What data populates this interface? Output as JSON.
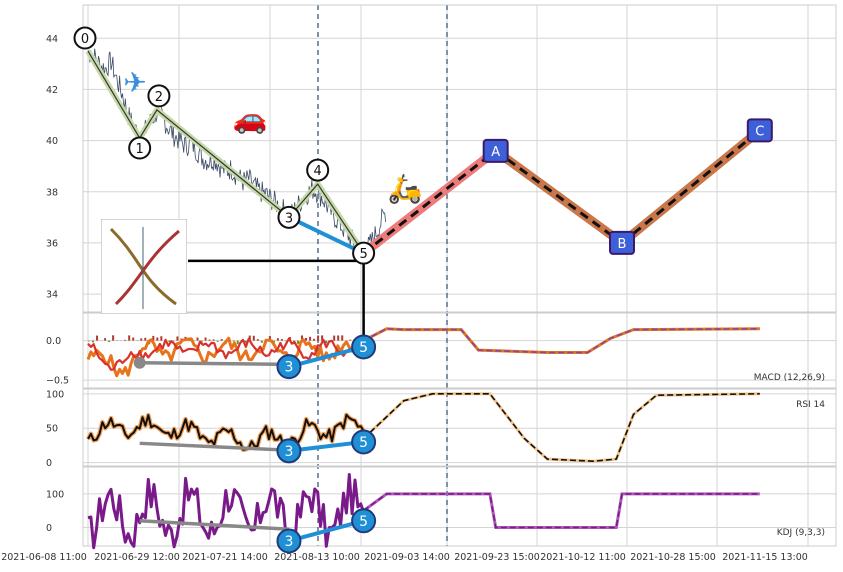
{
  "chart_data": {
    "type": "line",
    "x_tick_labels": [
      "2021-06-08 11:00",
      "2021-06-29 12:00",
      "2021-07-21 14:00",
      "2021-08-13 10:00",
      "2021-09-03 14:00",
      "2021-09-23 15:00",
      "2021-10-12 11:00",
      "2021-10-28 15:00",
      "2021-11-15 13:00"
    ],
    "panels": [
      {
        "name": "price",
        "ylim": [
          33.3,
          45.3
        ],
        "y_ticks": [
          34,
          36,
          38,
          40,
          42,
          44
        ],
        "series": [
          {
            "values": [
              43.5,
              43.3,
              43.0,
              42.8,
              43.1,
              42.4,
              41.8,
              41.0,
              40.5,
              40.2,
              40.4,
              40.8,
              41.1,
              40.9,
              40.5,
              40.2,
              40.0,
              39.8,
              39.9,
              39.6,
              39.3,
              39.2,
              39.3,
              39.0,
              38.8,
              38.9,
              38.6,
              38.4,
              38.5,
              38.2,
              38.0,
              37.9,
              37.7,
              37.5,
              37.3,
              37.0,
              37.3,
              37.6,
              37.9,
              38.1,
              38.0,
              37.7,
              37.3,
              37.0,
              36.7,
              36.4,
              36.1,
              35.8,
              35.6,
              35.9,
              36.3,
              36.8,
              37.3
            ]
          }
        ],
        "wave_labels": [
          "0",
          "1",
          "2",
          "3",
          "4",
          "5"
        ],
        "wave_points": [
          [
            0,
            43.5
          ],
          [
            9,
            40.1
          ],
          [
            12,
            41.2
          ],
          [
            35,
            37.0
          ],
          [
            40,
            38.3
          ],
          [
            48,
            35.6
          ]
        ],
        "projection_labels": [
          "A",
          "B",
          "C"
        ],
        "projection_points": [
          [
            48,
            35.6
          ],
          [
            71,
            39.6
          ],
          [
            93,
            36.0
          ],
          [
            117,
            40.4
          ]
        ],
        "projection_support_level": 35.3
      },
      {
        "name": "macd",
        "label": "MACD (12,26,9)",
        "ylim": [
          -0.6,
          0.35
        ],
        "y_ticks": [
          0.0,
          -0.5
        ],
        "y_tick_labels": [
          "0.0",
          "−0.5"
        ],
        "divergence_label": "3",
        "divergence_end_label": "5",
        "divergence_points": [
          [
            35,
            -0.33
          ],
          [
            48,
            -0.08
          ]
        ],
        "grey_divergence_points": [
          [
            9,
            -0.28
          ],
          [
            35,
            -0.3
          ]
        ]
      },
      {
        "name": "rsi",
        "label": "RSI 14",
        "ylim": [
          -5,
          107
        ],
        "y_ticks": [
          0,
          50,
          100
        ],
        "divergence_label": "3",
        "divergence_end_label": "5",
        "divergence_points": [
          [
            35,
            17
          ],
          [
            48,
            30
          ]
        ],
        "grey_divergence_points": [
          [
            9,
            28
          ],
          [
            35,
            18
          ]
        ],
        "forward_values": [
          [
            48,
            35
          ],
          [
            55,
            90
          ],
          [
            60,
            100
          ],
          [
            70,
            100
          ],
          [
            76,
            35
          ],
          [
            80,
            5
          ],
          [
            88,
            2
          ],
          [
            92,
            5
          ],
          [
            95,
            70
          ],
          [
            99,
            98
          ],
          [
            117,
            100
          ]
        ]
      },
      {
        "name": "kdj",
        "label": "KDJ (9,3,3)",
        "ylim": [
          -55,
          180
        ],
        "y_ticks": [
          0,
          100
        ],
        "divergence_label": "3",
        "divergence_end_label": "5",
        "divergence_points": [
          [
            35,
            -40
          ],
          [
            48,
            20
          ]
        ],
        "grey_divergence_points": [
          [
            9,
            20
          ],
          [
            35,
            -5
          ]
        ],
        "forward_values": [
          [
            48,
            50
          ],
          [
            52,
            100
          ],
          [
            70,
            100
          ],
          [
            71,
            0
          ],
          [
            92,
            0
          ],
          [
            93,
            100
          ],
          [
            117,
            100
          ]
        ]
      }
    ]
  }
}
